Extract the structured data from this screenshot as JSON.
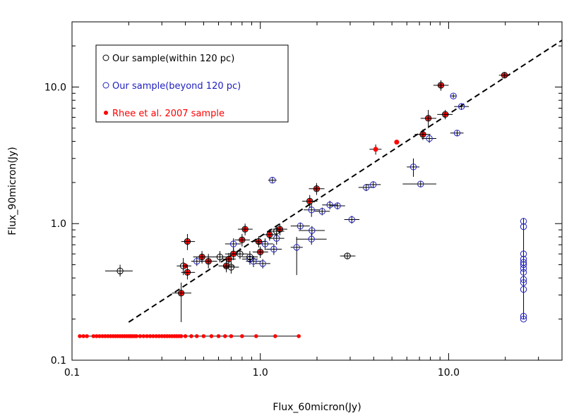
{
  "chart_data": {
    "type": "scatter",
    "title": "",
    "xlabel": "Flux_60micron(Jy)",
    "ylabel": "Flux_90micron(Jy)",
    "xscale": "log",
    "yscale": "log",
    "xlim": [
      0.1,
      40
    ],
    "ylim": [
      0.1,
      30
    ],
    "x_ticks": [
      0.1,
      1.0,
      10.0
    ],
    "x_tick_labels": [
      "0.1",
      "1.0",
      "10.0"
    ],
    "y_ticks": [
      0.1,
      1.0,
      10.0
    ],
    "y_tick_labels": [
      "0.1",
      "1.0",
      "10.0"
    ],
    "grid": false,
    "legend_position": "top-left",
    "colors": {
      "within": "#000000",
      "beyond": "#2020c0",
      "rhee": "#ff0000",
      "fit_line": "#000000"
    },
    "legend": [
      {
        "label": "Our sample(within 120 pc)",
        "marker": "open-circle",
        "color": "#000000"
      },
      {
        "label": "Our sample(beyond 120 pc)",
        "marker": "open-circle",
        "color": "#2020c0"
      },
      {
        "label": "Rhee et al. 2007 sample",
        "marker": "filled-dot",
        "color": "#ff0000"
      }
    ],
    "fit_line": {
      "style": "dashed",
      "x": [
        0.2,
        40
      ],
      "y": [
        0.19,
        22
      ]
    },
    "series": [
      {
        "name": "Our sample(within 120 pc)",
        "marker": "open-circle",
        "points": [
          {
            "x": 0.18,
            "y": 0.45,
            "xerr": [
              0.15,
              0.21
            ],
            "yerr": [
              0.41,
              0.5
            ]
          },
          {
            "x": 0.38,
            "y": 0.31,
            "xerr": [
              0.34,
              0.43
            ],
            "yerr": [
              0.19,
              0.37
            ]
          },
          {
            "x": 0.39,
            "y": 0.49,
            "xerr": [
              0.36,
              0.43
            ],
            "yerr": [
              0.42,
              0.56
            ]
          },
          {
            "x": 0.41,
            "y": 0.74,
            "xerr": [
              0.38,
              0.45
            ],
            "yerr": [
              0.64,
              0.84
            ]
          },
          {
            "x": 0.41,
            "y": 0.44,
            "xerr": [
              0.38,
              0.45
            ],
            "yerr": [
              0.39,
              0.5
            ]
          },
          {
            "x": 0.49,
            "y": 0.57,
            "xerr": [
              0.44,
              0.55
            ],
            "yerr": [
              0.51,
              0.63
            ]
          },
          {
            "x": 0.53,
            "y": 0.53,
            "xerr": [
              0.48,
              0.59
            ],
            "yerr": [
              0.47,
              0.6
            ]
          },
          {
            "x": 0.61,
            "y": 0.57,
            "xerr": [
              0.55,
              0.67
            ],
            "yerr": [
              0.52,
              0.63
            ]
          },
          {
            "x": 0.66,
            "y": 0.49,
            "xerr": [
              0.6,
              0.73
            ],
            "yerr": [
              0.44,
              0.55
            ]
          },
          {
            "x": 0.68,
            "y": 0.55,
            "xerr": [
              0.62,
              0.74
            ],
            "yerr": [
              0.5,
              0.61
            ]
          },
          {
            "x": 0.7,
            "y": 0.48,
            "xerr": [
              0.64,
              0.77
            ],
            "yerr": [
              0.43,
              0.53
            ]
          },
          {
            "x": 0.72,
            "y": 0.6,
            "xerr": [
              0.65,
              0.79
            ],
            "yerr": [
              0.54,
              0.66
            ]
          },
          {
            "x": 0.78,
            "y": 0.6,
            "xerr": [
              0.7,
              0.86
            ],
            "yerr": [
              0.55,
              0.66
            ]
          },
          {
            "x": 0.8,
            "y": 0.76,
            "xerr": [
              0.73,
              0.88
            ],
            "yerr": [
              0.68,
              0.84
            ]
          },
          {
            "x": 0.83,
            "y": 0.91,
            "xerr": [
              0.76,
              0.91
            ],
            "yerr": [
              0.82,
              1.0
            ]
          },
          {
            "x": 0.88,
            "y": 0.57,
            "xerr": [
              0.8,
              0.97
            ],
            "yerr": [
              0.52,
              0.63
            ]
          },
          {
            "x": 0.98,
            "y": 0.74,
            "xerr": [
              0.89,
              1.07
            ],
            "yerr": [
              0.67,
              0.81
            ]
          },
          {
            "x": 1.0,
            "y": 0.62,
            "xerr": [
              0.91,
              1.1
            ],
            "yerr": [
              0.56,
              0.68
            ]
          },
          {
            "x": 1.12,
            "y": 0.83,
            "xerr": [
              1.02,
              1.23
            ],
            "yerr": [
              0.75,
              0.91
            ]
          },
          {
            "x": 1.22,
            "y": 0.88,
            "xerr": [
              1.11,
              1.34
            ],
            "yerr": [
              0.79,
              0.97
            ]
          },
          {
            "x": 1.27,
            "y": 0.91,
            "xerr": [
              1.16,
              1.39
            ],
            "yerr": [
              0.82,
              1.0
            ]
          },
          {
            "x": 1.83,
            "y": 1.46,
            "xerr": [
              1.67,
              2.01
            ],
            "yerr": [
              1.3,
              1.62
            ]
          },
          {
            "x": 1.99,
            "y": 1.8,
            "xerr": [
              1.81,
              2.19
            ],
            "yerr": [
              1.62,
              1.98
            ]
          },
          {
            "x": 2.9,
            "y": 0.58,
            "xerr": [
              2.65,
              3.2
            ],
            "yerr": [
              0.55,
              0.61
            ]
          },
          {
            "x": 7.3,
            "y": 4.5,
            "xerr": [
              6.6,
              8.0
            ],
            "yerr": [
              4.1,
              4.9
            ]
          },
          {
            "x": 7.8,
            "y": 5.9,
            "xerr": [
              7.1,
              8.6
            ],
            "yerr": [
              5.0,
              6.8
            ]
          },
          {
            "x": 9.1,
            "y": 10.3,
            "xerr": [
              8.3,
              10.0
            ],
            "yerr": [
              9.4,
              11.2
            ]
          },
          {
            "x": 9.6,
            "y": 6.3,
            "xerr": [
              8.7,
              10.5
            ],
            "yerr": [
              5.8,
              6.8
            ]
          },
          {
            "x": 19.8,
            "y": 12.2,
            "xerr": [
              18.5,
              21.1
            ],
            "yerr": [
              11.7,
              12.7
            ]
          }
        ]
      },
      {
        "name": "Our sample(beyond 120 pc)",
        "marker": "open-circle",
        "points": [
          {
            "x": 0.46,
            "y": 0.53,
            "xerr": [
              0.43,
              0.5
            ],
            "yerr": [
              0.49,
              0.57
            ]
          },
          {
            "x": 0.72,
            "y": 0.71,
            "xerr": [
              0.65,
              0.79
            ],
            "yerr": [
              0.64,
              0.78
            ]
          },
          {
            "x": 0.88,
            "y": 0.55,
            "xerr": [
              0.8,
              0.97
            ],
            "yerr": [
              0.5,
              0.61
            ]
          },
          {
            "x": 0.92,
            "y": 0.53,
            "xerr": [
              0.84,
              1.01
            ],
            "yerr": [
              0.48,
              0.58
            ]
          },
          {
            "x": 1.03,
            "y": 0.51,
            "xerr": [
              0.94,
              1.13
            ],
            "yerr": [
              0.47,
              0.55
            ]
          },
          {
            "x": 1.06,
            "y": 0.71,
            "xerr": [
              0.96,
              1.17
            ],
            "yerr": [
              0.64,
              0.78
            ]
          },
          {
            "x": 1.16,
            "y": 2.08,
            "xerr": [
              1.1,
              1.22
            ],
            "yerr": [
              1.98,
              2.18
            ]
          },
          {
            "x": 1.18,
            "y": 0.65,
            "xerr": [
              1.07,
              1.3
            ],
            "yerr": [
              0.59,
              0.71
            ]
          },
          {
            "x": 1.22,
            "y": 0.78,
            "xerr": [
              1.11,
              1.34
            ],
            "yerr": [
              0.7,
              0.86
            ]
          },
          {
            "x": 1.56,
            "y": 0.67,
            "xerr": [
              1.45,
              1.68
            ],
            "yerr": [
              0.42,
              0.8
            ]
          },
          {
            "x": 1.63,
            "y": 0.96,
            "xerr": [
              1.45,
              1.83
            ],
            "yerr": [
              0.9,
              1.02
            ]
          },
          {
            "x": 1.87,
            "y": 1.26,
            "xerr": [
              1.7,
              2.06
            ],
            "yerr": [
              1.12,
              1.4
            ]
          },
          {
            "x": 1.87,
            "y": 0.77,
            "xerr": [
              1.55,
              2.25
            ],
            "yerr": [
              0.7,
              0.85
            ]
          },
          {
            "x": 1.88,
            "y": 0.89,
            "xerr": [
              1.6,
              2.2
            ],
            "yerr": [
              0.82,
              0.96
            ]
          },
          {
            "x": 2.13,
            "y": 1.23,
            "xerr": [
              1.94,
              2.34
            ],
            "yerr": [
              1.15,
              1.31
            ]
          },
          {
            "x": 2.34,
            "y": 1.37,
            "xerr": [
              2.13,
              2.57
            ],
            "yerr": [
              1.27,
              1.47
            ]
          },
          {
            "x": 2.57,
            "y": 1.35,
            "xerr": [
              2.34,
              2.82
            ],
            "yerr": [
              1.27,
              1.43
            ]
          },
          {
            "x": 3.06,
            "y": 1.07,
            "xerr": [
              2.79,
              3.36
            ],
            "yerr": [
              1.0,
              1.14
            ]
          },
          {
            "x": 3.65,
            "y": 1.84,
            "xerr": [
              3.32,
              4.0
            ],
            "yerr": [
              1.73,
              1.95
            ]
          },
          {
            "x": 3.98,
            "y": 1.93,
            "xerr": [
              3.63,
              4.36
            ],
            "yerr": [
              1.82,
              2.04
            ]
          },
          {
            "x": 6.5,
            "y": 2.6,
            "xerr": [
              6.0,
              7.0
            ],
            "yerr": [
              2.2,
              3.0
            ]
          },
          {
            "x": 7.1,
            "y": 1.95,
            "xerr": [
              5.7,
              8.6
            ],
            "yerr": [
              1.86,
              2.04
            ]
          },
          {
            "x": 7.9,
            "y": 4.2,
            "xerr": [
              7.2,
              8.6
            ],
            "yerr": [
              3.9,
              4.5
            ]
          },
          {
            "x": 10.6,
            "y": 8.6,
            "xerr": [
              10.2,
              11.0
            ],
            "yerr": [
              8.3,
              8.9
            ]
          },
          {
            "x": 11.1,
            "y": 4.6,
            "xerr": [
              10.2,
              12.0
            ],
            "yerr": [
              4.4,
              4.8
            ]
          },
          {
            "x": 11.7,
            "y": 7.2,
            "xerr": [
              10.7,
              12.8
            ],
            "yerr": [
              6.8,
              7.6
            ]
          },
          {
            "x": 25.0,
            "y": 1.04,
            "xerr": [
              25.0,
              25.0
            ],
            "yerr": [
              0.2,
              1.1
            ]
          },
          {
            "x": 25.0,
            "y": 0.95
          },
          {
            "x": 25.0,
            "y": 0.6
          },
          {
            "x": 25.0,
            "y": 0.55
          },
          {
            "x": 25.0,
            "y": 0.52
          },
          {
            "x": 25.0,
            "y": 0.5
          },
          {
            "x": 25.0,
            "y": 0.47
          },
          {
            "x": 25.0,
            "y": 0.44
          },
          {
            "x": 25.0,
            "y": 0.39
          },
          {
            "x": 25.0,
            "y": 0.37
          },
          {
            "x": 25.0,
            "y": 0.33
          },
          {
            "x": 25.0,
            "y": 0.21
          },
          {
            "x": 25.0,
            "y": 0.2
          }
        ]
      },
      {
        "name": "Rhee et al. 2007 sample",
        "marker": "filled-dot",
        "points": [
          {
            "x": 0.38,
            "y": 0.31
          },
          {
            "x": 0.4,
            "y": 0.49
          },
          {
            "x": 0.41,
            "y": 0.74
          },
          {
            "x": 0.41,
            "y": 0.44
          },
          {
            "x": 0.49,
            "y": 0.57
          },
          {
            "x": 0.53,
            "y": 0.53
          },
          {
            "x": 0.66,
            "y": 0.49
          },
          {
            "x": 0.68,
            "y": 0.55
          },
          {
            "x": 0.72,
            "y": 0.6
          },
          {
            "x": 0.8,
            "y": 0.76
          },
          {
            "x": 0.83,
            "y": 0.91
          },
          {
            "x": 0.98,
            "y": 0.74
          },
          {
            "x": 1.0,
            "y": 0.62
          },
          {
            "x": 1.12,
            "y": 0.83
          },
          {
            "x": 1.27,
            "y": 0.91
          },
          {
            "x": 1.83,
            "y": 1.46
          },
          {
            "x": 1.99,
            "y": 1.8
          },
          {
            "x": 4.1,
            "y": 3.5,
            "xerr": [
              3.8,
              4.4
            ],
            "yerr": [
              3.2,
              3.8
            ]
          },
          {
            "x": 5.3,
            "y": 3.95
          },
          {
            "x": 7.3,
            "y": 4.5
          },
          {
            "x": 7.8,
            "y": 5.9
          },
          {
            "x": 9.1,
            "y": 10.3
          },
          {
            "x": 9.6,
            "y": 6.3
          },
          {
            "x": 19.8,
            "y": 12.2
          }
        ],
        "upper_limit_y": 0.15,
        "upper_limit_x": [
          0.11,
          0.115,
          0.12,
          0.13,
          0.135,
          0.14,
          0.145,
          0.15,
          0.155,
          0.16,
          0.165,
          0.17,
          0.175,
          0.18,
          0.185,
          0.19,
          0.195,
          0.2,
          0.205,
          0.21,
          0.215,
          0.22,
          0.23,
          0.24,
          0.25,
          0.26,
          0.27,
          0.28,
          0.29,
          0.3,
          0.31,
          0.32,
          0.33,
          0.34,
          0.35,
          0.36,
          0.37,
          0.38,
          0.4,
          0.43,
          0.46,
          0.5,
          0.55,
          0.6,
          0.65,
          0.7,
          0.8,
          0.95,
          1.2,
          1.6
        ],
        "upper_limit_xerr": [
          0.11,
          1.6
        ]
      }
    ]
  }
}
